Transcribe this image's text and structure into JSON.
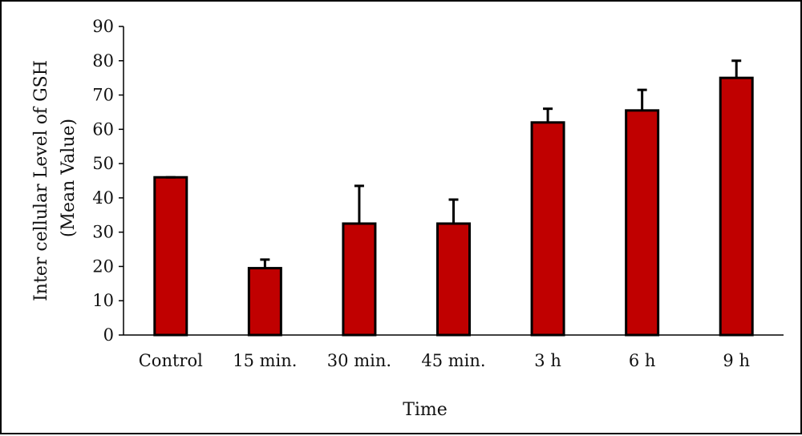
{
  "chart_data": {
    "type": "bar",
    "categories": [
      "Control",
      "15 min.",
      "30 min.",
      "45 min.",
      "3 h",
      "6 h",
      "9 h"
    ],
    "values": [
      46,
      19.5,
      32.5,
      32.5,
      62,
      65.5,
      75
    ],
    "error_upper": [
      0,
      2.5,
      11,
      7,
      4,
      6,
      5
    ],
    "ylim": [
      0,
      90
    ],
    "yticks": [
      0,
      10,
      20,
      30,
      40,
      50,
      60,
      70,
      80,
      90
    ],
    "xlabel": "Time",
    "ylabel_line1": "Inter cellular Level of GSH",
    "ylabel_line2": "(Mean Value)",
    "grid": false,
    "legend": "none",
    "colors": {
      "bar_fill": "#c00000",
      "bar_stroke": "#000000",
      "error_bar": "#000000"
    }
  }
}
